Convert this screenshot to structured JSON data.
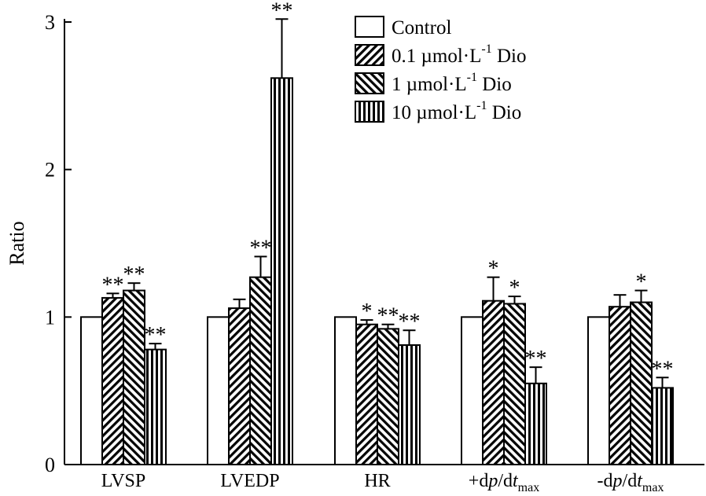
{
  "chart_data": {
    "type": "bar",
    "title": "",
    "xlabel": "",
    "ylabel": "Ratio",
    "ylim": [
      0,
      3
    ],
    "yticks": [
      "0",
      "1",
      "2",
      "3"
    ],
    "categories": [
      {
        "parts": [
          {
            "t": "LVSP"
          }
        ]
      },
      {
        "parts": [
          {
            "t": "LVEDP"
          }
        ]
      },
      {
        "parts": [
          {
            "t": "HR"
          }
        ]
      },
      {
        "parts": [
          {
            "t": "+d"
          },
          {
            "t": "p",
            "it": true
          },
          {
            "t": "/d"
          },
          {
            "t": "t",
            "it": true
          },
          {
            "t": "max",
            "sub": true
          }
        ]
      },
      {
        "parts": [
          {
            "t": "-d"
          },
          {
            "t": "p",
            "it": true
          },
          {
            "t": "/d"
          },
          {
            "t": "t",
            "it": true
          },
          {
            "t": "max",
            "sub": true
          }
        ]
      }
    ],
    "series": [
      {
        "name": "Control",
        "legend": {
          "pre": "Control",
          "sup": "",
          "post": ""
        },
        "pattern": "none",
        "values": [
          1.0,
          1.0,
          1.0,
          1.0,
          1.0
        ],
        "errors": [
          0,
          0,
          0,
          0,
          0
        ],
        "sig": [
          "",
          "",
          "",
          "",
          ""
        ]
      },
      {
        "name": "0.1 µmol·L-1 Dio",
        "legend": {
          "pre": "0.1 µmol·L",
          "sup": "-1",
          "post": " Dio"
        },
        "pattern": "diag-up",
        "values": [
          1.13,
          1.06,
          0.95,
          1.11,
          1.07
        ],
        "errors": [
          0.03,
          0.06,
          0.03,
          0.16,
          0.08
        ],
        "sig": [
          "**",
          "",
          "*",
          "*",
          ""
        ]
      },
      {
        "name": "1 µmol·L-1 Dio",
        "legend": {
          "pre": "1 µmol·L",
          "sup": "-1",
          "post": " Dio"
        },
        "pattern": "diag-down",
        "values": [
          1.18,
          1.27,
          0.92,
          1.09,
          1.1
        ],
        "errors": [
          0.05,
          0.14,
          0.03,
          0.05,
          0.08
        ],
        "sig": [
          "**",
          "**",
          "**",
          "*",
          "*"
        ]
      },
      {
        "name": "10 µmol·L-1 Dio",
        "legend": {
          "pre": "10 µmol·L",
          "sup": "-1",
          "post": " Dio"
        },
        "pattern": "vertical",
        "values": [
          0.78,
          2.62,
          0.81,
          0.55,
          0.52
        ],
        "errors": [
          0.04,
          0.4,
          0.1,
          0.11,
          0.07
        ],
        "sig": [
          "**",
          "**",
          "**",
          "**",
          "**"
        ]
      }
    ],
    "legend_position": "top-right"
  }
}
